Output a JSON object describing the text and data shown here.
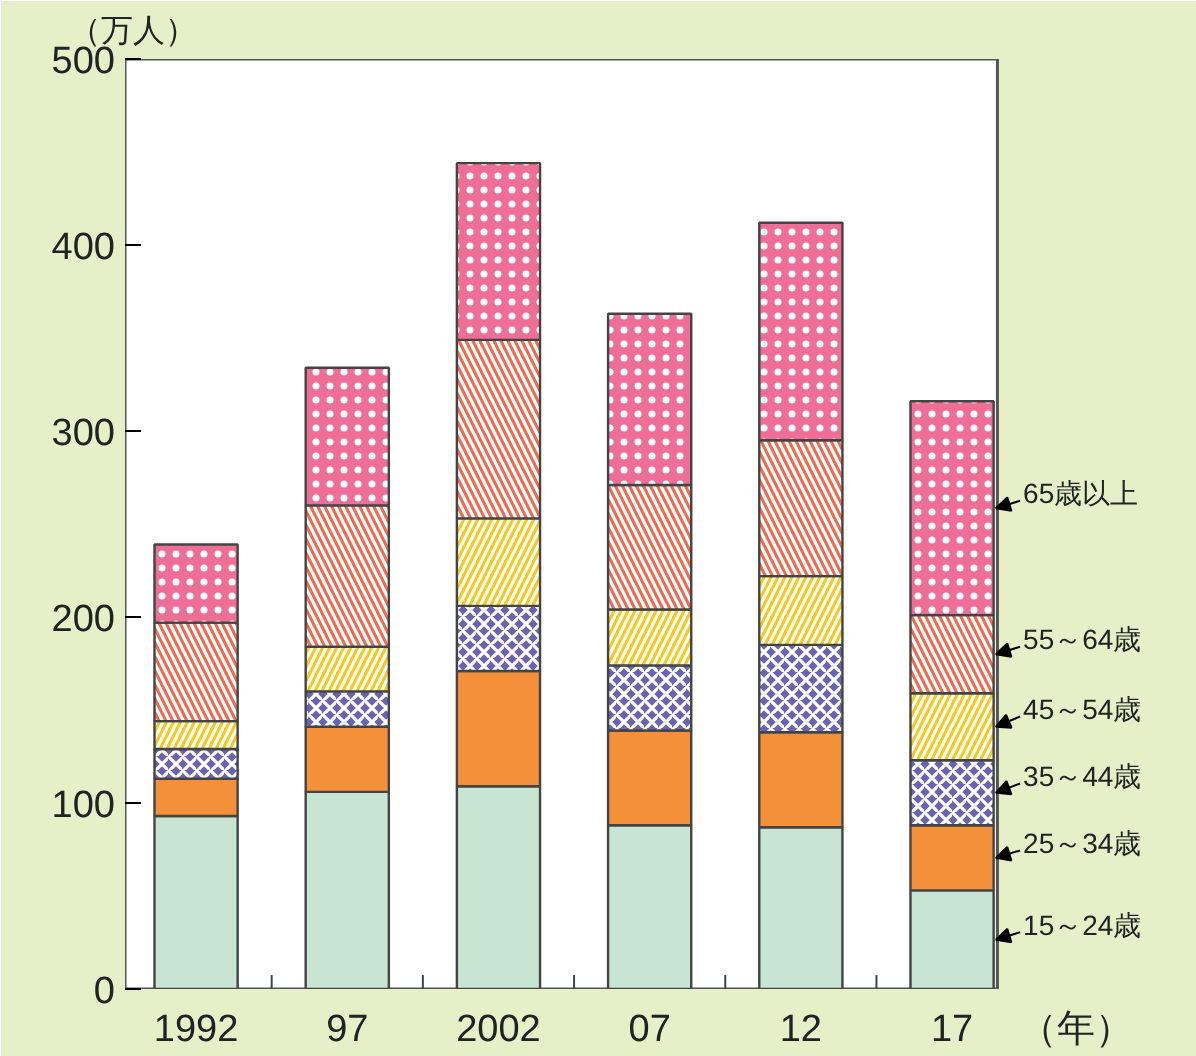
{
  "chart_data": {
    "type": "bar",
    "stacked": true,
    "ylabel": "（万人）",
    "xlabel": "（年）",
    "categories": [
      "1992",
      "97",
      "2002",
      "07",
      "12",
      "17"
    ],
    "series": [
      {
        "name": "15～24歳",
        "color": "#c8e4d2",
        "values": [
          93,
          106,
          109,
          88,
          87,
          53
        ]
      },
      {
        "name": "25～34歳",
        "color": "#f5903a",
        "values": [
          20,
          35,
          62,
          51,
          51,
          35
        ]
      },
      {
        "name": "35～44歳",
        "color": "#6a64b0",
        "values": [
          16,
          19,
          35,
          35,
          47,
          35
        ]
      },
      {
        "name": "45～54歳",
        "color": "#f8c81c",
        "values": [
          15,
          24,
          47,
          30,
          37,
          36
        ]
      },
      {
        "name": "55～64歳",
        "color": "#f06a50",
        "values": [
          53,
          76,
          96,
          67,
          73,
          42
        ]
      },
      {
        "name": "65歳以上",
        "color": "#ee6e96",
        "values": [
          42,
          74,
          95,
          92,
          117,
          115
        ]
      }
    ],
    "ylim": [
      0,
      500
    ],
    "yticks": [
      0,
      100,
      200,
      300,
      400,
      500
    ],
    "grid": false,
    "legend": false
  }
}
